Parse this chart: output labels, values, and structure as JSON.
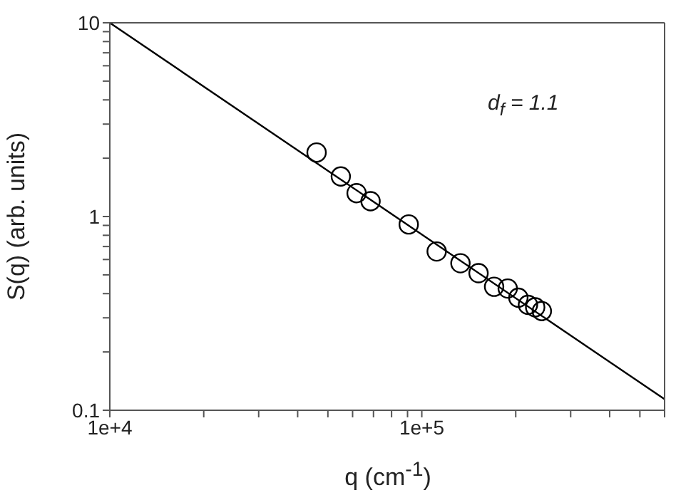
{
  "chart_data": {
    "type": "scatter",
    "log": "xy",
    "xlabel": "q (cm$^{-1}$)",
    "ylabel": "S(q) (arb. units)",
    "annotations": [
      "d$_{f}$ = 1.1"
    ],
    "xlim": [
      10000,
      600000
    ],
    "xticks": [
      {
        "value": 10000,
        "label": "1e+4"
      },
      {
        "value": 20000,
        "label": null
      },
      {
        "value": 30000,
        "label": null
      },
      {
        "value": 40000,
        "label": null
      },
      {
        "value": 50000,
        "label": null
      },
      {
        "value": 60000,
        "label": null
      },
      {
        "value": 70000,
        "label": null
      },
      {
        "value": 80000,
        "label": null
      },
      {
        "value": 90000,
        "label": null
      },
      {
        "value": 100000,
        "label": "1e+5"
      },
      {
        "value": 200000,
        "label": null
      },
      {
        "value": 300000,
        "label": null
      },
      {
        "value": 400000,
        "label": null
      },
      {
        "value": 500000,
        "label": null
      },
      {
        "value": 600000,
        "label": null
      }
    ],
    "ylim": [
      0.1,
      10
    ],
    "yticks": [
      0.1,
      {
        "value": 0.2,
        "label": null
      },
      {
        "value": 0.3,
        "label": null
      },
      {
        "value": 0.4,
        "label": null
      },
      {
        "value": 0.5,
        "label": null
      },
      {
        "value": 0.6,
        "label": null
      },
      {
        "value": 0.7,
        "label": null
      },
      {
        "value": 0.8,
        "label": null
      },
      {
        "value": 0.9,
        "label": null
      },
      1,
      {
        "value": 2,
        "label": null
      },
      {
        "value": 3,
        "label": null
      },
      {
        "value": 4,
        "label": null
      },
      {
        "value": 5,
        "label": null
      },
      {
        "value": 6,
        "label": null
      },
      {
        "value": 7,
        "label": null
      },
      {
        "value": 8,
        "label": null
      },
      {
        "value": 9,
        "label": null
      },
      10
    ],
    "series": [
      {
        "marker": "circle",
        "color": "#000000",
        "x": [
          46000,
          55000,
          61800,
          68500,
          90800,
          111600,
          133000,
          152000,
          170500,
          188500,
          203900,
          218900,
          230900,
          242500
        ],
        "values": [
          2.14,
          1.61,
          1.32,
          1.2,
          0.91,
          0.66,
          0.574,
          0.51,
          0.434,
          0.425,
          0.381,
          0.35,
          0.34,
          0.325
        ]
      },
      {
        "type": "line",
        "color": "#000000",
        "x": [
          10000,
          600000
        ],
        "values": [
          10,
          0.114
        ]
      }
    ]
  }
}
